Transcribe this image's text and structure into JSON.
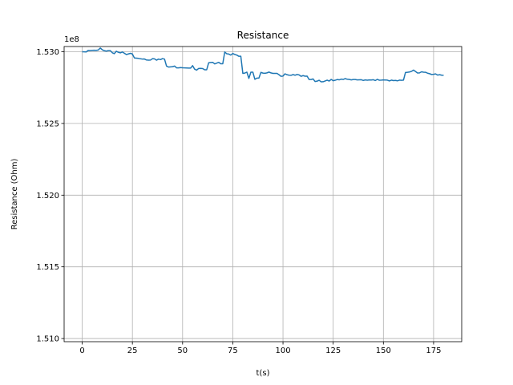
{
  "chart_data": {
    "type": "line",
    "title": "Resistance",
    "xlabel": "t(s)",
    "ylabel": "Resistance (Ohm)",
    "y_offset_label": "1e8",
    "color": "#1f77b4",
    "grid": true,
    "xlim": [
      -9,
      189
    ],
    "xticks": [
      0,
      25,
      50,
      75,
      100,
      125,
      150,
      175
    ],
    "ylim": [
      150978000,
      153036500
    ],
    "yticks": [
      {
        "value": 151000000,
        "label": "1.510"
      },
      {
        "value": 151500000,
        "label": "1.515"
      },
      {
        "value": 152000000,
        "label": "1.520"
      },
      {
        "value": 152500000,
        "label": "1.525"
      },
      {
        "value": 153000000,
        "label": "1.530"
      }
    ],
    "x": [
      0,
      1,
      2,
      3,
      4,
      5,
      6,
      7,
      8,
      9,
      10,
      11,
      12,
      13,
      14,
      15,
      16,
      17,
      18,
      19,
      20,
      21,
      22,
      23,
      24,
      25,
      26,
      27,
      28,
      29,
      30,
      31,
      32,
      33,
      34,
      35,
      36,
      37,
      38,
      39,
      40,
      41,
      42,
      43,
      44,
      45,
      46,
      47,
      48,
      49,
      50,
      51,
      52,
      53,
      54,
      55,
      56,
      57,
      58,
      59,
      60,
      61,
      62,
      63,
      64,
      65,
      66,
      67,
      68,
      69,
      70,
      71,
      72,
      73,
      74,
      75,
      76,
      77,
      78,
      79,
      80,
      81,
      82,
      83,
      84,
      85,
      86,
      87,
      88,
      89,
      90,
      91,
      92,
      93,
      94,
      95,
      96,
      97,
      98,
      99,
      100,
      101,
      102,
      103,
      104,
      105,
      106,
      107,
      108,
      109,
      110,
      111,
      112,
      113,
      114,
      115,
      116,
      117,
      118,
      119,
      120,
      121,
      122,
      123,
      124,
      125,
      126,
      127,
      128,
      129,
      130,
      131,
      132,
      133,
      134,
      135,
      136,
      137,
      138,
      139,
      140,
      141,
      142,
      143,
      144,
      145,
      146,
      147,
      148,
      149,
      150,
      151,
      152,
      153,
      154,
      155,
      156,
      157,
      158,
      159,
      160,
      161,
      162,
      163,
      164,
      165,
      166,
      167,
      168,
      169,
      170,
      171,
      172,
      173,
      174,
      175,
      176,
      177,
      178,
      179,
      180
    ],
    "values": [
      153000000,
      152999300,
      152998600,
      153009100,
      153008400,
      153009800,
      153010500,
      153009800,
      153011900,
      153026000,
      153014000,
      153007700,
      153004200,
      153007700,
      153007700,
      152993000,
      152986700,
      153003500,
      152996500,
      152992300,
      152998600,
      152989500,
      152980400,
      152984600,
      152988800,
      152984600,
      152956500,
      152955100,
      152953700,
      152950900,
      152948800,
      152949500,
      152942500,
      152941100,
      152941800,
      152951600,
      152950200,
      152941100,
      152948800,
      152945300,
      152952300,
      152948800,
      152899600,
      152893300,
      152894700,
      152896100,
      152900300,
      152887700,
      152887700,
      152889800,
      152888400,
      152887700,
      152887000,
      152886300,
      152886300,
      152903200,
      152878600,
      152871600,
      152883500,
      152884200,
      152882800,
      152874400,
      152874400,
      152923500,
      152925600,
      152926300,
      152915100,
      152920700,
      152926300,
      152916500,
      152916500,
      152998600,
      152986000,
      152983900,
      152976800,
      152988100,
      152981100,
      152976800,
      152968400,
      152968400,
      152849100,
      152851200,
      152858200,
      152814000,
      152857500,
      152857500,
      152807700,
      152816100,
      152816100,
      152856100,
      152851200,
      152849800,
      152852600,
      152858200,
      152852600,
      152849100,
      152849100,
      152849100,
      152840000,
      152828700,
      152830100,
      152846300,
      152840000,
      152836400,
      152835700,
      152840700,
      152836400,
      152841400,
      152838600,
      152828700,
      152833700,
      152829400,
      152830100,
      152806300,
      152806300,
      152810500,
      152792300,
      152795100,
      152801400,
      152790200,
      152790900,
      152796400,
      152802100,
      152795800,
      152807100,
      152797900,
      152801400,
      152806300,
      152804200,
      152809100,
      152807100,
      152812800,
      152808400,
      152807100,
      152803500,
      152806300,
      152806300,
      152803500,
      152804200,
      152804900,
      152800000,
      152803500,
      152801400,
      152803500,
      152802800,
      152804900,
      152799300,
      152807700,
      152801400,
      152802100,
      152803500,
      152802800,
      152802100,
      152796400,
      152802100,
      152798600,
      152800000,
      152797200,
      152802100,
      152800700,
      152802100,
      152855500,
      152856900,
      152859000,
      152863300,
      152872400,
      152862400,
      152851900,
      152852600,
      152860300,
      152857500,
      152856900,
      152850500,
      152847000,
      152841400,
      152842800,
      152845600,
      152837400,
      152840000,
      152836400,
      152835700
    ]
  }
}
